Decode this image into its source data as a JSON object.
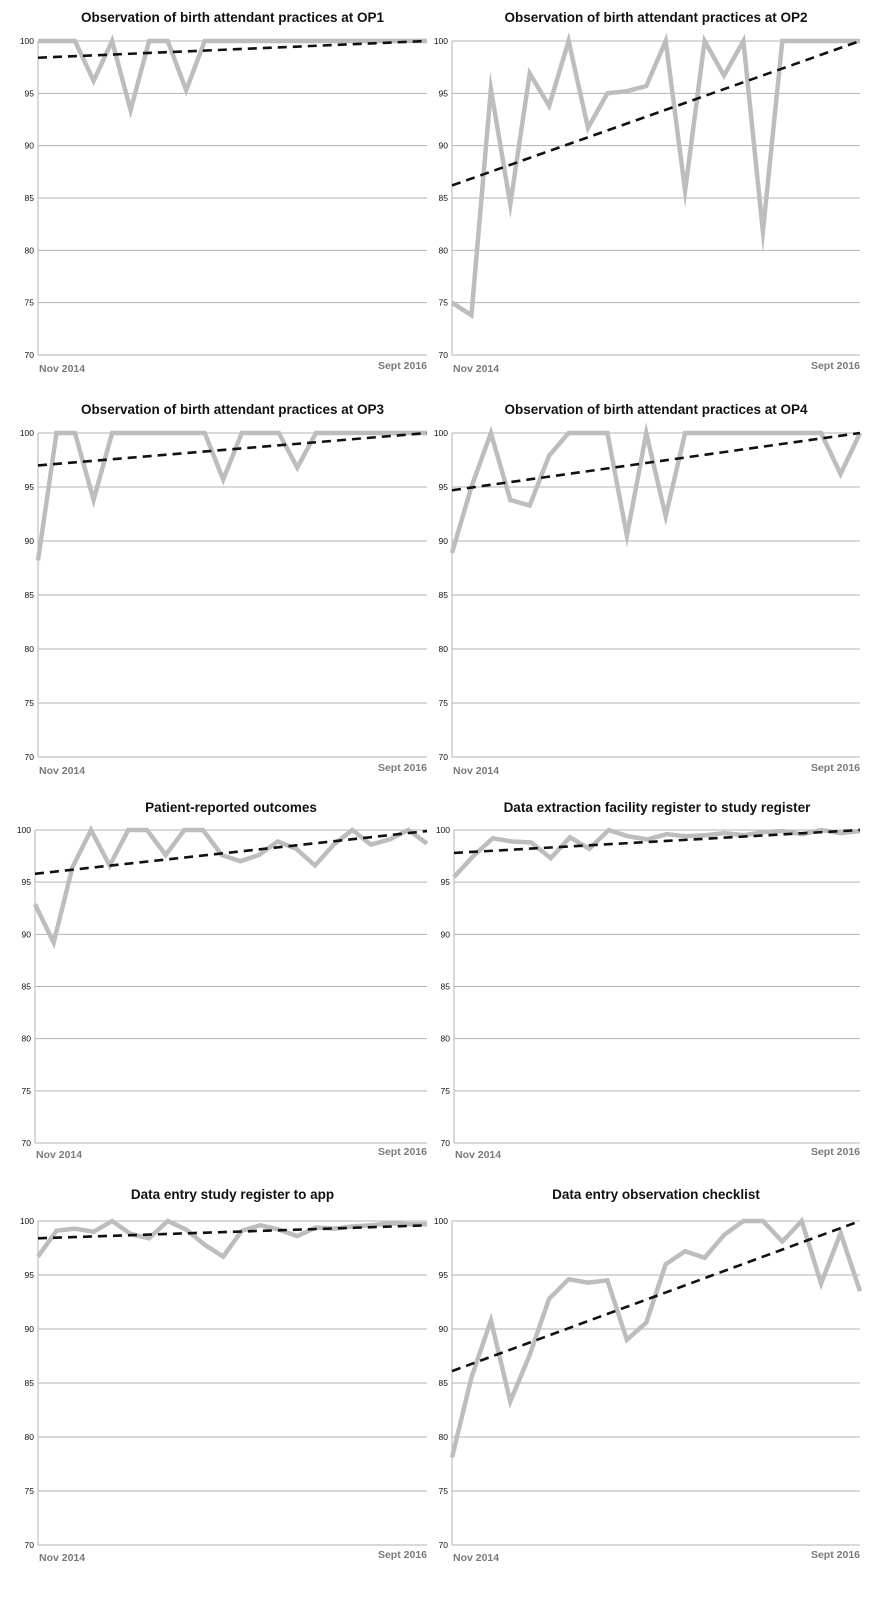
{
  "colors": {
    "data_line": "#bdbdbd",
    "trend_line": "#111111",
    "grid": "#b3b3b3",
    "x_label": "#7a7a7a"
  },
  "chart_data": [
    {
      "type": "line",
      "title": "Observation of birth attendant practices at OP1",
      "x_labels": [
        "Nov 2014",
        "Sept 2016"
      ],
      "yticks": [
        "100",
        "95",
        "90",
        "85",
        "80",
        "75",
        "70"
      ],
      "ylim": [
        70,
        100
      ],
      "grid": true,
      "series": [
        {
          "values": [
            100,
            100,
            100,
            96.2,
            100,
            93.4,
            100,
            100,
            95.3,
            100,
            100,
            100,
            100,
            100,
            100,
            100,
            100,
            100,
            100,
            100,
            100,
            100
          ]
        },
        {
          "style": "dashed-trend",
          "values": [
            98.4,
            100
          ]
        }
      ]
    },
    {
      "type": "line",
      "title": "Observation of birth attendant practices at OP2",
      "x_labels": [
        "Nov 2014",
        "Sept 2016"
      ],
      "yticks": [
        "100",
        "95",
        "90",
        "85",
        "80",
        "75",
        "70"
      ],
      "ylim": [
        70,
        100
      ],
      "grid": true,
      "series": [
        {
          "values": [
            75,
            73.8,
            95.4,
            84.4,
            96.9,
            93.8,
            100,
            91.7,
            95,
            95.2,
            95.7,
            100,
            85.7,
            100,
            96.7,
            100,
            81.8,
            100,
            100,
            100,
            100,
            100
          ]
        },
        {
          "style": "dashed-trend",
          "values": [
            86.2,
            100
          ]
        }
      ]
    },
    {
      "type": "line",
      "title": "Observation of birth attendant practices at OP3",
      "x_labels": [
        "Nov 2014",
        "Sept 2016"
      ],
      "yticks": [
        "100",
        "95",
        "90",
        "85",
        "80",
        "75",
        "70"
      ],
      "ylim": [
        70,
        100
      ],
      "grid": true,
      "series": [
        {
          "values": [
            88.2,
            100,
            100,
            93.8,
            100,
            100,
            100,
            100,
            100,
            100,
            95.7,
            100,
            100,
            100,
            96.8,
            100,
            100,
            100,
            100,
            100,
            100,
            100
          ]
        },
        {
          "style": "dashed-trend",
          "values": [
            97,
            100
          ]
        }
      ]
    },
    {
      "type": "line",
      "title": "Observation of birth attendant practices at OP4",
      "x_labels": [
        "Nov 2014",
        "Sept 2016"
      ],
      "yticks": [
        "100",
        "95",
        "90",
        "85",
        "80",
        "75",
        "70"
      ],
      "ylim": [
        70,
        100
      ],
      "grid": true,
      "series": [
        {
          "values": [
            88.9,
            95,
            100,
            93.8,
            93.3,
            97.9,
            100,
            100,
            100,
            90.5,
            100,
            92.3,
            100,
            100,
            100,
            100,
            100,
            100,
            100,
            100,
            96.2,
            100
          ]
        },
        {
          "style": "dashed-trend",
          "values": [
            94.7,
            100
          ]
        }
      ]
    },
    {
      "type": "line",
      "title": "Patient-reported outcomes",
      "x_labels": [
        "Nov 2014",
        "Sept 2016"
      ],
      "yticks": [
        "100",
        "95",
        "90",
        "85",
        "80",
        "75",
        "70"
      ],
      "ylim": [
        70,
        100
      ],
      "grid": true,
      "series": [
        {
          "values": [
            92.9,
            89.2,
            96.4,
            100,
            96.6,
            100,
            100,
            97.6,
            100,
            100,
            97.6,
            97,
            97.6,
            98.9,
            98.2,
            96.6,
            98.6,
            100,
            98.6,
            99.1,
            100,
            98.7
          ]
        },
        {
          "style": "dashed-trend",
          "values": [
            95.8,
            99.9
          ]
        }
      ]
    },
    {
      "type": "line",
      "title": "Data extraction facility register to study register",
      "x_labels": [
        "Nov 2014",
        "Sept 2016"
      ],
      "yticks": [
        "100",
        "95",
        "90",
        "85",
        "80",
        "75",
        "70"
      ],
      "ylim": [
        70,
        100
      ],
      "grid": true,
      "series": [
        {
          "values": [
            95.5,
            97.5,
            99.2,
            98.9,
            98.8,
            97.3,
            99.3,
            98.2,
            100,
            99.4,
            99.1,
            99.6,
            99.4,
            99.5,
            99.7,
            99.5,
            99.8,
            99.9,
            99.6,
            100,
            99.7,
            99.9
          ]
        },
        {
          "style": "dashed-trend",
          "values": [
            97.8,
            100
          ]
        }
      ]
    },
    {
      "type": "line",
      "title": "Data entry study register to app",
      "x_labels": [
        "Nov 2014",
        "Sept 2016"
      ],
      "yticks": [
        "100",
        "95",
        "90",
        "85",
        "80",
        "75",
        "70"
      ],
      "ylim": [
        70,
        100
      ],
      "grid": true,
      "series": [
        {
          "values": [
            96.7,
            99.1,
            99.3,
            99,
            100,
            98.8,
            98.4,
            100,
            99.2,
            97.8,
            96.7,
            99.1,
            99.6,
            99.2,
            98.6,
            99.4,
            99.3,
            99.5,
            99.6,
            99.8,
            99.7,
            99.7
          ]
        },
        {
          "style": "dashed-trend",
          "values": [
            98.4,
            99.6
          ]
        }
      ]
    },
    {
      "type": "line",
      "title": "Data entry observation checklist",
      "x_labels": [
        "Nov 2014",
        "Sept 2016"
      ],
      "yticks": [
        "100",
        "95",
        "90",
        "85",
        "80",
        "75",
        "70"
      ],
      "ylim": [
        70,
        100
      ],
      "grid": true,
      "series": [
        {
          "values": [
            78.1,
            85.5,
            90.8,
            83.3,
            87.6,
            92.8,
            94.6,
            94.3,
            94.5,
            89,
            90.6,
            96,
            97.2,
            96.6,
            98.7,
            100,
            100,
            98.1,
            100,
            94.2,
            98.9,
            93.5
          ]
        },
        {
          "style": "dashed-trend",
          "values": [
            86.1,
            100
          ]
        }
      ]
    }
  ]
}
